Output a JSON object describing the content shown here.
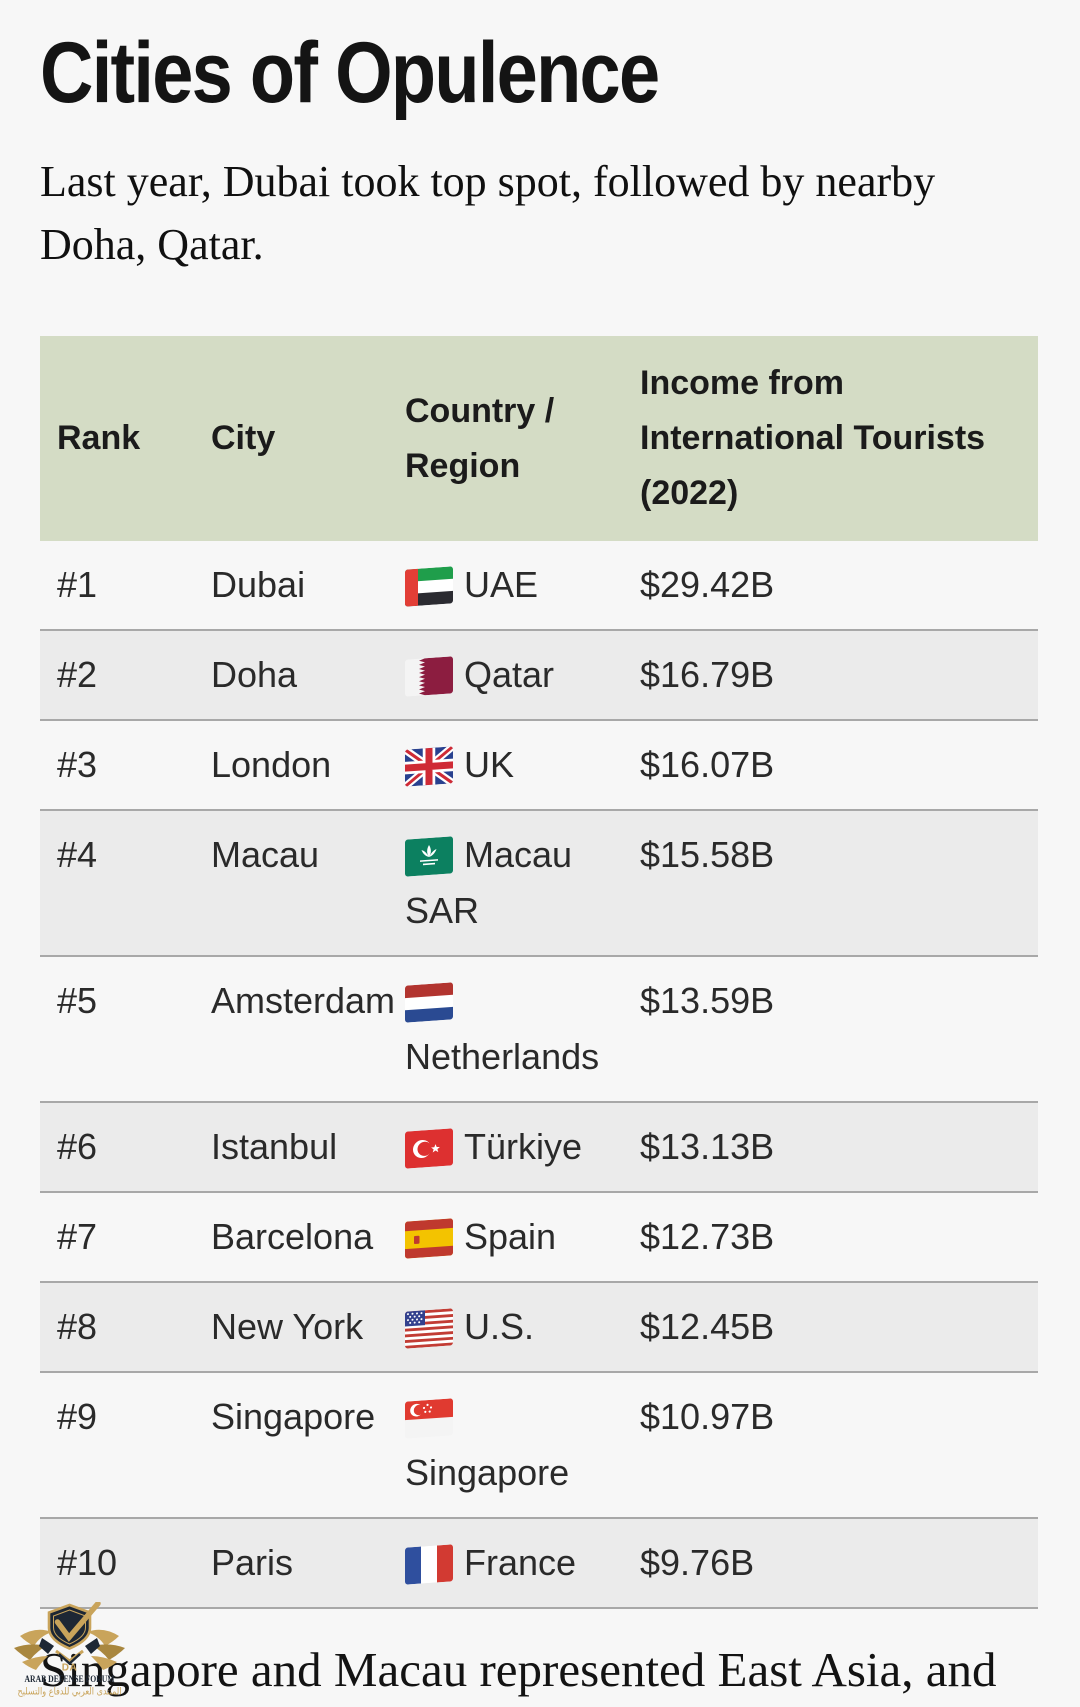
{
  "page": {
    "title": "Cities of Opulence",
    "subtitle": "Last year, Dubai took top spot, followed by nearby Doha, Qatar.",
    "footer_paragraph": "Singapore and Macau represented East Asia, and"
  },
  "table": {
    "headers": [
      "Rank",
      "City",
      "Country / Region",
      "Income from International Tourists (2022)"
    ],
    "rows": [
      {
        "rank": "#1",
        "city": "Dubai",
        "flag": "uae",
        "country": "UAE",
        "income": "$29.42B"
      },
      {
        "rank": "#2",
        "city": "Doha",
        "flag": "qatar",
        "country": "Qatar",
        "income": "$16.79B"
      },
      {
        "rank": "#3",
        "city": "London",
        "flag": "uk",
        "country": "UK",
        "income": "$16.07B"
      },
      {
        "rank": "#4",
        "city": "Macau",
        "flag": "macau",
        "country": "Macau SAR",
        "income": "$15.58B"
      },
      {
        "rank": "#5",
        "city": "Amsterdam",
        "flag": "netherlands",
        "country": "Netherlands",
        "income": "$13.59B"
      },
      {
        "rank": "#6",
        "city": "Istanbul",
        "flag": "turkiye",
        "country": "Türkiye",
        "income": "$13.13B"
      },
      {
        "rank": "#7",
        "city": "Barcelona",
        "flag": "spain",
        "country": "Spain",
        "income": "$12.73B"
      },
      {
        "rank": "#8",
        "city": "New York",
        "flag": "us",
        "country": "U.S.",
        "income": "$12.45B"
      },
      {
        "rank": "#9",
        "city": "Singapore",
        "flag": "singapore",
        "country": "Singapore",
        "income": "$10.97B"
      },
      {
        "rank": "#10",
        "city": "Paris",
        "flag": "france",
        "country": "France",
        "income": "$9.76B"
      }
    ]
  },
  "watermark": {
    "monogram": "DA",
    "name": "ARAB DEFENSE FORUM",
    "arabic": "المنتدى العربي للدفاع والتسليح"
  },
  "colors": {
    "page_bg": "#f7f7f7",
    "header_green": "#d4dcc5",
    "stripe_gray": "#ebebeb",
    "stripe_border": "#a8a8a8",
    "text_dark": "#222222",
    "watermark_navy": "#1d2734",
    "watermark_gold": "#c9a45b"
  }
}
